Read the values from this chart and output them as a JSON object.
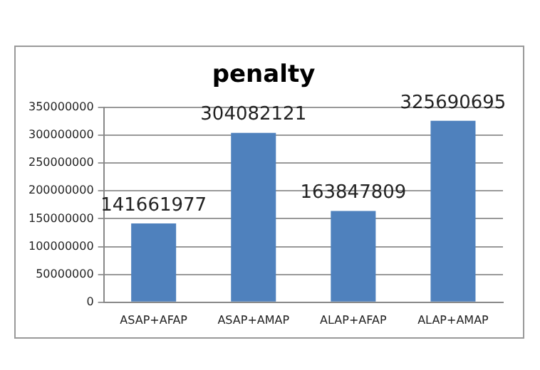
{
  "chart_data": {
    "type": "bar",
    "title": "penalty",
    "categories": [
      "ASAP+AFAP",
      "ASAP+AMAP",
      "ALAP+AFAP",
      "ALAP+AMAP"
    ],
    "values": [
      141661977,
      304082121,
      163847809,
      325690695
    ],
    "color": "#4f81bd",
    "ylim": [
      0,
      350000000
    ],
    "yticks": [
      0,
      50000000,
      100000000,
      150000000,
      200000000,
      250000000,
      300000000,
      350000000
    ],
    "grid": "y",
    "data_labels": true
  }
}
